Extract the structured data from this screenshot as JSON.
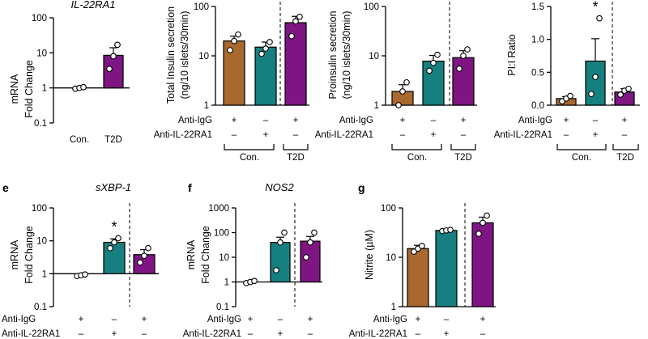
{
  "colors": {
    "control": "#ffffff",
    "anti_igg": "#a8682e",
    "anti_il22ra1": "#168080",
    "t2d": "#7e1583",
    "axis": "#000000"
  },
  "chart_data": [
    {
      "id": "a",
      "type": "bar",
      "title": "IL-22RA1",
      "ylabel": [
        "mRNA",
        "Fold Change"
      ],
      "yscale": "log",
      "ylim": [
        0.1,
        100
      ],
      "yticks": [
        "0.1",
        "1",
        "10",
        "100"
      ],
      "categories": [
        "Con.",
        "T2D"
      ],
      "values": [
        1.0,
        8.5
      ],
      "errors": [
        0.0,
        5.5
      ],
      "points": [
        [
          0.95,
          1.0,
          1.05
        ],
        [
          3.5,
          8.0,
          17.0
        ]
      ],
      "colors": [
        "#ffffff",
        "#7e1583"
      ],
      "baseline": 1,
      "divider": false,
      "stars": []
    },
    {
      "id": "b",
      "type": "bar",
      "title": "",
      "ylabel": [
        "Total Insulin secretion",
        "(ng/10 islets/30min)"
      ],
      "yscale": "log",
      "ylim": [
        1,
        100
      ],
      "yticks": [
        "1",
        "10",
        "100"
      ],
      "categories": [
        "Anti-IgG",
        "Anti-IL-22RA1",
        "T2D"
      ],
      "values": [
        20,
        15,
        47
      ],
      "errors": [
        5,
        4,
        16
      ],
      "points": [
        [
          13,
          20,
          27
        ],
        [
          11,
          14,
          19
        ],
        [
          25,
          50,
          62
        ]
      ],
      "colors": [
        "#a8682e",
        "#168080",
        "#7e1583"
      ],
      "divider": true,
      "stars": [],
      "rows": [
        {
          "label": "Anti-IgG",
          "marks": [
            "+",
            "–",
            "+"
          ]
        },
        {
          "label": "Anti-IL-22RA1",
          "marks": [
            "–",
            "+",
            "–"
          ]
        }
      ],
      "groups": [
        "Con.",
        "T2D"
      ]
    },
    {
      "id": "c",
      "type": "bar",
      "title": "",
      "ylabel": [
        "Proinsulin secretion",
        "(ng/10 islets/30min)"
      ],
      "yscale": "log",
      "ylim": [
        1,
        100
      ],
      "yticks": [
        "1",
        "10",
        "100"
      ],
      "categories": [
        "Anti-IgG",
        "Anti-IL-22RA1",
        "T2D"
      ],
      "values": [
        1.9,
        7.8,
        9.2
      ],
      "errors": [
        0.7,
        2.4,
        3.5
      ],
      "points": [
        [
          1.0,
          1.9,
          2.9
        ],
        [
          5.0,
          7.2,
          10.5
        ],
        [
          5.5,
          10.0,
          13.5
        ]
      ],
      "colors": [
        "#a8682e",
        "#168080",
        "#7e1583"
      ],
      "divider": true,
      "stars": [],
      "rows": [
        {
          "label": "Anti-IgG",
          "marks": [
            "+",
            "–",
            "+"
          ]
        },
        {
          "label": "Anti-IL-22RA1",
          "marks": [
            "–",
            "+",
            "–"
          ]
        }
      ],
      "groups": [
        "Con.",
        "T2D"
      ]
    },
    {
      "id": "d",
      "type": "bar",
      "title": "",
      "ylabel": [
        "PI:I Ratio"
      ],
      "yscale": "linear",
      "ylim": [
        0,
        1.5
      ],
      "yticks": [
        "0.0",
        "0.5",
        "1.0",
        "1.5"
      ],
      "categories": [
        "Anti-IgG",
        "Anti-IL-22RA1",
        "T2D"
      ],
      "values": [
        0.1,
        0.67,
        0.2
      ],
      "errors": [
        0.03,
        0.34,
        0.05
      ],
      "points": [
        [
          0.06,
          0.1,
          0.14
        ],
        [
          0.17,
          0.43,
          1.32
        ],
        [
          0.16,
          0.22,
          0.25
        ]
      ],
      "colors": [
        "#a8682e",
        "#168080",
        "#7e1583"
      ],
      "divider": true,
      "stars": [
        "",
        "*",
        ""
      ],
      "rows": [
        {
          "label": "Anti-IgG",
          "marks": [
            "+",
            "–",
            "+"
          ]
        },
        {
          "label": "Anti-IL-22RA1",
          "marks": [
            "–",
            "+",
            "–"
          ]
        }
      ],
      "groups": [
        "Con.",
        "T2D"
      ]
    },
    {
      "id": "e",
      "type": "bar",
      "title": "sXBP-1",
      "ylabel": [
        "mRNA",
        "Fold Change"
      ],
      "yscale": "log",
      "ylim": [
        0.1,
        100
      ],
      "yticks": [
        "0.1",
        "1",
        "10",
        "100"
      ],
      "categories": [
        "Anti-IgG",
        "Anti-IL-22RA1",
        "T2D"
      ],
      "values": [
        1.0,
        9.0,
        3.8
      ],
      "errors": [
        0.0,
        2.5,
        1.6
      ],
      "points": [
        [
          0.85,
          0.9,
          0.95
        ],
        [
          6.0,
          9.0,
          12.0
        ],
        [
          2.2,
          3.5,
          6.0
        ]
      ],
      "colors": [
        "#ffffff",
        "#168080",
        "#7e1583"
      ],
      "baseline": 1,
      "divider": true,
      "stars": [
        "",
        "*",
        ""
      ],
      "rows": [
        {
          "label": "Anti-IgG",
          "marks": [
            "+",
            "–",
            "+"
          ]
        },
        {
          "label": "Anti-IL-22RA1",
          "marks": [
            "–",
            "+",
            "–"
          ]
        }
      ]
    },
    {
      "id": "f",
      "type": "bar",
      "title": "NOS2",
      "ylabel": [
        "mRNA",
        "Fold Change"
      ],
      "yscale": "log",
      "ylim": [
        0.1,
        1000
      ],
      "yticks": [
        "0.1",
        "1",
        "10",
        "100",
        "1000"
      ],
      "categories": [
        "Anti-IgG",
        "Anti-IL-22RA1",
        "T2D"
      ],
      "values": [
        1.0,
        40,
        45
      ],
      "errors": [
        0.0,
        25,
        25
      ],
      "points": [
        [
          0.9,
          1.0,
          1.1
        ],
        [
          3.0,
          40,
          100
        ],
        [
          10,
          40,
          100
        ]
      ],
      "colors": [
        "#ffffff",
        "#168080",
        "#7e1583"
      ],
      "baseline": 1,
      "divider": true,
      "stars": [],
      "rows": [
        {
          "label": "Anti-IgG",
          "marks": [
            "+",
            "–",
            "+"
          ]
        },
        {
          "label": "Anti-IL-22RA1",
          "marks": [
            "–",
            "+",
            "–"
          ]
        }
      ]
    },
    {
      "id": "g",
      "type": "bar",
      "title": "",
      "ylabel": [
        "Nitrite (µM)"
      ],
      "yscale": "log",
      "ylim": [
        1,
        100
      ],
      "yticks": [
        "1",
        "10",
        "100"
      ],
      "categories": [
        "Anti-IgG",
        "Anti-IL-22RA1",
        "T2D"
      ],
      "values": [
        15,
        35,
        50
      ],
      "errors": [
        2.5,
        2,
        15
      ],
      "points": [
        [
          13,
          15,
          17
        ],
        [
          34,
          35,
          36
        ],
        [
          30,
          50,
          70
        ]
      ],
      "colors": [
        "#a8682e",
        "#168080",
        "#7e1583"
      ],
      "divider": true,
      "stars": [],
      "rows": [
        {
          "label": "Anti-IgG",
          "marks": [
            "+",
            "–",
            "+"
          ]
        },
        {
          "label": "Anti-IL-22RA1",
          "marks": [
            "–",
            "+",
            "–"
          ]
        }
      ]
    }
  ],
  "panel_letters": [
    "e",
    "f",
    "g"
  ]
}
